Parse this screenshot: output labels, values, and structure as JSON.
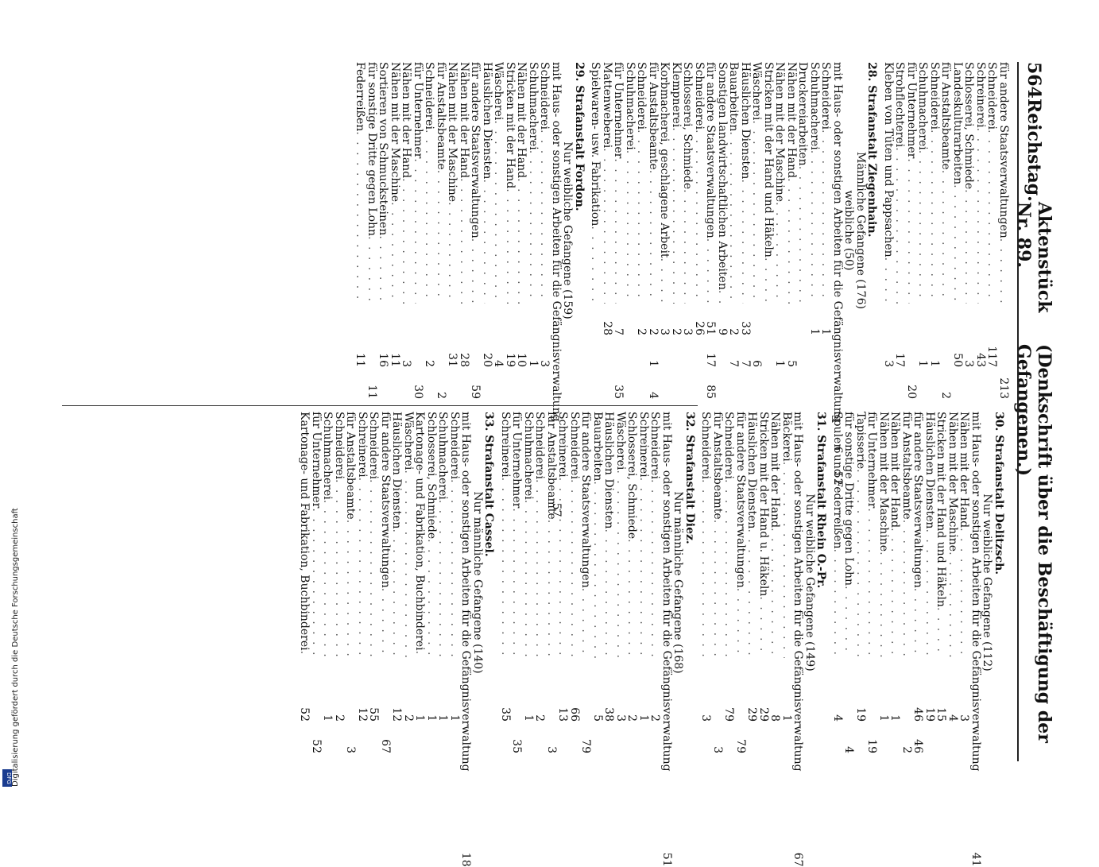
{
  "header": {
    "page_number": "564",
    "publisher": "Reichstag.",
    "file": "Aktenstück Nr. 89.",
    "title": "(Denkschrift über die Beschäftigung der Gefangenen.)"
  },
  "left_column": [
    {
      "kind": "row",
      "label": "für andere Staatsverwaltungen",
      "n1": "",
      "n2": "",
      "n3": "213"
    },
    {
      "kind": "row",
      "label": "Schneiderei",
      "n1": "",
      "n2": "117",
      "n3": ""
    },
    {
      "kind": "row",
      "label": "Schreinerei",
      "n1": "",
      "n2": "43",
      "n3": ""
    },
    {
      "kind": "row",
      "label": "Schlosserei, Schmiede",
      "n1": "",
      "n2": "3",
      "n3": ""
    },
    {
      "kind": "row",
      "label": "Landeskulturarbeiten",
      "n1": "",
      "n2": "50",
      "n3": ""
    },
    {
      "kind": "row",
      "label": "für Anstaltsbeamte",
      "n1": "",
      "n2": "",
      "n3": "2"
    },
    {
      "kind": "row",
      "label": "Schneiderei",
      "n1": "",
      "n2": "1",
      "n3": ""
    },
    {
      "kind": "row",
      "label": "Schuhmacherei",
      "n1": "",
      "n2": "1",
      "n3": ""
    },
    {
      "kind": "row",
      "label": "für Unternehmer",
      "n1": "",
      "n2": "",
      "n3": "20"
    },
    {
      "kind": "row",
      "label": "Strohflechterei",
      "n1": "",
      "n2": "17",
      "n3": ""
    },
    {
      "kind": "row",
      "label": "Kleben von Tüten und Pappsachen",
      "n1": "",
      "n2": "3",
      "n3": ""
    },
    {
      "kind": "section",
      "label": "28. Strafanstalt Ziegenhain."
    },
    {
      "kind": "sub",
      "label": "Männliche Gefangene (176)"
    },
    {
      "kind": "sub",
      "label": "weibliche (50)"
    },
    {
      "kind": "row",
      "label": "mit Haus- oder sonstigen Arbeiten für die Gefängnisverwaltung",
      "n1": "6",
      "n2": "52",
      "n3": ""
    },
    {
      "kind": "row",
      "label": "Schneiderei",
      "n1": "1",
      "n2": "",
      "n3": ""
    },
    {
      "kind": "row",
      "label": "Schuhmacherei",
      "n1": "1",
      "n2": "",
      "n3": ""
    },
    {
      "kind": "row",
      "label": "Druckereiarbeiten",
      "n1": "",
      "n2": "",
      "n3": ""
    },
    {
      "kind": "row",
      "label": "Nähen mit der Hand",
      "n1": "",
      "n2": "5",
      "n3": ""
    },
    {
      "kind": "row",
      "label": "Nähen mit der Maschine",
      "n1": "",
      "n2": "1",
      "n3": ""
    },
    {
      "kind": "row",
      "label": "Stricken mit der Hand und Häkeln",
      "n1": "",
      "n2": "",
      "n3": ""
    },
    {
      "kind": "row",
      "label": "Wäscherei",
      "n1": "",
      "n2": "6",
      "n3": ""
    },
    {
      "kind": "row",
      "label": "Häuslichen Diensten",
      "n1": "33",
      "n2": "7",
      "n3": ""
    },
    {
      "kind": "row",
      "label": "Bauarbeiten",
      "n1": "2",
      "n2": "7",
      "n3": ""
    },
    {
      "kind": "row",
      "label": "Sonstigen landwirtschaftlichen Arbeiten",
      "n1": "9",
      "n2": "",
      "n3": ""
    },
    {
      "kind": "row",
      "label": "für andere Staatsverwaltungen",
      "n1": "51",
      "n2": "17",
      "n3": "85"
    },
    {
      "kind": "row",
      "label": "Schneiderei",
      "n1": "26",
      "n2": "",
      "n3": ""
    },
    {
      "kind": "row",
      "label": "Schlosserei, Schmiede",
      "n1": "3",
      "n2": "",
      "n3": ""
    },
    {
      "kind": "row",
      "label": "Klempnerei",
      "n1": "2",
      "n2": "",
      "n3": ""
    },
    {
      "kind": "row",
      "label": "Korbmacherei, geschlagene Arbeit",
      "n1": "3",
      "n2": "",
      "n3": ""
    },
    {
      "kind": "row",
      "label": "für Anstaltsbeamte",
      "n1": "2",
      "n2": "1",
      "n3": "4"
    },
    {
      "kind": "row",
      "label": "Schneiderei",
      "n1": "2",
      "n2": "",
      "n3": ""
    },
    {
      "kind": "row",
      "label": "Schuhmacherei",
      "n1": "",
      "n2": "",
      "n3": ""
    },
    {
      "kind": "row",
      "label": "für Unternehmer",
      "n1": "7",
      "n2": "",
      "n3": "35"
    },
    {
      "kind": "row",
      "label": "Mattenweberei",
      "n1": "28",
      "n2": "",
      "n3": ""
    },
    {
      "kind": "row",
      "label": "Spielwaren- usw. Fabrikation",
      "n1": "",
      "n2": "",
      "n3": ""
    },
    {
      "kind": "section",
      "label": "29. Strafanstalt Fordon."
    },
    {
      "kind": "sub",
      "label": "Nur weibliche Gefangene (159)"
    },
    {
      "kind": "row",
      "label": "mit Haus- oder sonstigen Arbeiten für die Gefängnisverwaltung",
      "n1": "",
      "n2": "",
      "n3": "57"
    },
    {
      "kind": "row",
      "label": "Schneiderei",
      "n1": "",
      "n2": "3",
      "n3": ""
    },
    {
      "kind": "row",
      "label": "Schuhmacherei",
      "n1": "",
      "n2": "1",
      "n3": ""
    },
    {
      "kind": "row",
      "label": "Nähen mit der Hand",
      "n1": "",
      "n2": "10",
      "n3": ""
    },
    {
      "kind": "row",
      "label": "Stricken mit der Hand",
      "n1": "",
      "n2": "19",
      "n3": ""
    },
    {
      "kind": "row",
      "label": "Wäscherei",
      "n1": "",
      "n2": "4",
      "n3": ""
    },
    {
      "kind": "row",
      "label": "Häuslichen Diensten",
      "n1": "",
      "n2": "20",
      "n3": ""
    },
    {
      "kind": "row",
      "label": "für andere Staatsverwaltungen",
      "n1": "",
      "n2": "",
      "n3": "59"
    },
    {
      "kind": "row",
      "label": "Nähen mit der Hand",
      "n1": "",
      "n2": "28",
      "n3": ""
    },
    {
      "kind": "row",
      "label": "Nähen mit der Maschine",
      "n1": "",
      "n2": "31",
      "n3": ""
    },
    {
      "kind": "row",
      "label": "für Anstaltsbeamte",
      "n1": "",
      "n2": "",
      "n3": "2"
    },
    {
      "kind": "row",
      "label": "Schneiderei",
      "n1": "",
      "n2": "2",
      "n3": ""
    },
    {
      "kind": "row",
      "label": "für Unternehmer",
      "n1": "",
      "n2": "",
      "n3": "30"
    },
    {
      "kind": "row",
      "label": "Nähen mit der Hand",
      "n1": "",
      "n2": "3",
      "n3": ""
    },
    {
      "kind": "row",
      "label": "Nähen mit der Maschine",
      "n1": "",
      "n2": "11",
      "n3": ""
    },
    {
      "kind": "row",
      "label": "Sortieren von Schmucksteinen",
      "n1": "",
      "n2": "16",
      "n3": ""
    },
    {
      "kind": "row",
      "label": "für sonstige Dritte gegen Lohn",
      "n1": "",
      "n2": "",
      "n3": "11"
    },
    {
      "kind": "row",
      "label": "Federreißen",
      "n1": "",
      "n2": "11",
      "n3": ""
    }
  ],
  "right_column": [
    {
      "kind": "section",
      "label": "30. Strafanstalt Delitzsch."
    },
    {
      "kind": "sub",
      "label": "Nur weibliche Gefangene (112)"
    },
    {
      "kind": "row",
      "label": "mit Haus- oder sonstigen Arbeiten für die Gefängnisverwaltung",
      "n1": "",
      "n2": "",
      "n3": "41"
    },
    {
      "kind": "row",
      "label": "Nähen mit der Hand",
      "n1": "",
      "n2": "3",
      "n3": ""
    },
    {
      "kind": "row",
      "label": "Nähen mit der Maschine",
      "n1": "",
      "n2": "4",
      "n3": ""
    },
    {
      "kind": "row",
      "label": "Stricken mit der Hand und Häkeln",
      "n1": "",
      "n2": "15",
      "n3": ""
    },
    {
      "kind": "row",
      "label": "Häuslichen Diensten",
      "n1": "",
      "n2": "19",
      "n3": ""
    },
    {
      "kind": "row",
      "label": "für andere Staatsverwaltungen",
      "n1": "",
      "n2": "46",
      "n3": "46"
    },
    {
      "kind": "row",
      "label": "für Anstaltsbeamte",
      "n1": "",
      "n2": "",
      "n3": "2"
    },
    {
      "kind": "row",
      "label": "Nähen mit der Hand",
      "n1": "",
      "n2": "1",
      "n3": ""
    },
    {
      "kind": "row",
      "label": "Nähen mit der Maschine",
      "n1": "",
      "n2": "1",
      "n3": ""
    },
    {
      "kind": "row",
      "label": "für Unternehmer",
      "n1": "",
      "n2": "",
      "n3": "19"
    },
    {
      "kind": "row",
      "label": "Tapisserie",
      "n1": "",
      "n2": "19",
      "n3": ""
    },
    {
      "kind": "row",
      "label": "für sonstige Dritte gegen Lohn",
      "n1": "",
      "n2": "",
      "n3": "4"
    },
    {
      "kind": "row",
      "label": "Spulen und Federreißen",
      "n1": "",
      "n2": "4",
      "n3": ""
    },
    {
      "kind": "section",
      "label": "31. Strafanstalt Rhein O.-Pr."
    },
    {
      "kind": "sub",
      "label": "Nur weibliche Gefangene (149)"
    },
    {
      "kind": "row",
      "label": "mit Haus- oder sonstigen Arbeiten für die Gefängnisverwaltung",
      "n1": "",
      "n2": "",
      "n3": "67"
    },
    {
      "kind": "row",
      "label": "Bäckerei",
      "n1": "",
      "n2": "1",
      "n3": ""
    },
    {
      "kind": "row",
      "label": "Nähen mit der Hand",
      "n1": "",
      "n2": "8",
      "n3": ""
    },
    {
      "kind": "row",
      "label": "Stricken mit der Hand u. Häkeln",
      "n1": "",
      "n2": "29",
      "n3": ""
    },
    {
      "kind": "row",
      "label": "Häuslichen Diensten",
      "n1": "",
      "n2": "29",
      "n3": ""
    },
    {
      "kind": "row",
      "label": "für andere Staatsverwaltungen",
      "n1": "",
      "n2": "",
      "n3": "79"
    },
    {
      "kind": "row",
      "label": "Schneiderei",
      "n1": "",
      "n2": "79",
      "n3": ""
    },
    {
      "kind": "row",
      "label": "für Anstaltsbeamte",
      "n1": "",
      "n2": "",
      "n3": "3"
    },
    {
      "kind": "row",
      "label": "Schneiderei",
      "n1": "",
      "n2": "3",
      "n3": ""
    },
    {
      "kind": "section",
      "label": "32. Strafanstalt Diez."
    },
    {
      "kind": "sub",
      "label": "Nur männliche Gefangene (168)"
    },
    {
      "kind": "row",
      "label": "mit Haus- oder sonstigen Arbeiten für die Gefängnisverwaltung",
      "n1": "",
      "n2": "",
      "n3": "51"
    },
    {
      "kind": "row",
      "label": "Schneiderei",
      "n1": "",
      "n2": "2",
      "n3": ""
    },
    {
      "kind": "row",
      "label": "Schreinerei",
      "n1": "",
      "n2": "1",
      "n3": ""
    },
    {
      "kind": "row",
      "label": "Schlosserei, Schmiede",
      "n1": "",
      "n2": "2",
      "n3": ""
    },
    {
      "kind": "row",
      "label": "Wäscherei",
      "n1": "",
      "n2": "3",
      "n3": ""
    },
    {
      "kind": "row",
      "label": "Häuslichen Diensten",
      "n1": "",
      "n2": "38",
      "n3": ""
    },
    {
      "kind": "row",
      "label": "Bauarbeiten",
      "n1": "",
      "n2": "5",
      "n3": ""
    },
    {
      "kind": "row",
      "label": "für andere Staatsverwaltungen",
      "n1": "",
      "n2": "",
      "n3": "79"
    },
    {
      "kind": "row",
      "label": "Schneiderei",
      "n1": "",
      "n2": "66",
      "n3": ""
    },
    {
      "kind": "row",
      "label": "Schreinerei",
      "n1": "",
      "n2": "13",
      "n3": ""
    },
    {
      "kind": "row",
      "label": "für Anstaltsbeamte",
      "n1": "",
      "n2": "",
      "n3": "3"
    },
    {
      "kind": "row",
      "label": "Schneiderei",
      "n1": "",
      "n2": "2",
      "n3": ""
    },
    {
      "kind": "row",
      "label": "Schuhmacherei",
      "n1": "",
      "n2": "1",
      "n3": ""
    },
    {
      "kind": "row",
      "label": "für Unternehmer",
      "n1": "",
      "n2": "",
      "n3": "35"
    },
    {
      "kind": "row",
      "label": "Schreinerei",
      "n1": "",
      "n2": "35",
      "n3": ""
    },
    {
      "kind": "section",
      "label": "33. Strafanstalt Cassel."
    },
    {
      "kind": "sub",
      "label": "Nur männliche Gefangene (140)"
    },
    {
      "kind": "row",
      "label": "mit Haus- oder sonstigen Arbeiten für die Gefängnisverwaltung",
      "n1": "",
      "n2": "",
      "n3": "18"
    },
    {
      "kind": "row",
      "label": "Schneiderei",
      "n1": "",
      "n2": "1",
      "n3": ""
    },
    {
      "kind": "row",
      "label": "Schuhmacherei",
      "n1": "",
      "n2": "1",
      "n3": ""
    },
    {
      "kind": "row",
      "label": "Schlosserei, Schmiede",
      "n1": "",
      "n2": "1",
      "n3": ""
    },
    {
      "kind": "row",
      "label": "Kartonage- und Fabrikation, Buchbinderei",
      "n1": "",
      "n2": "1",
      "n3": ""
    },
    {
      "kind": "row",
      "label": "Wäscherei",
      "n1": "",
      "n2": "2",
      "n3": ""
    },
    {
      "kind": "row",
      "label": "Häuslichen Diensten",
      "n1": "",
      "n2": "12",
      "n3": ""
    },
    {
      "kind": "row",
      "label": "für andere Staatsverwaltungen",
      "n1": "",
      "n2": "",
      "n3": "67"
    },
    {
      "kind": "row",
      "label": "Schneiderei",
      "n1": "",
      "n2": "55",
      "n3": ""
    },
    {
      "kind": "row",
      "label": "Schreinerei",
      "n1": "",
      "n2": "12",
      "n3": ""
    },
    {
      "kind": "row",
      "label": "für Anstaltsbeamte",
      "n1": "",
      "n2": "",
      "n3": "3"
    },
    {
      "kind": "row",
      "label": "Schneiderei",
      "n1": "",
      "n2": "2",
      "n3": ""
    },
    {
      "kind": "row",
      "label": "Schuhmacherei",
      "n1": "",
      "n2": "1",
      "n3": ""
    },
    {
      "kind": "row",
      "label": "für Unternehmer",
      "n1": "",
      "n2": "",
      "n3": "52"
    },
    {
      "kind": "row",
      "label": "Kartonage- und Fabrikation, Buchbinderei",
      "n1": "",
      "n2": "52",
      "n3": ""
    }
  ],
  "sidebar": {
    "text": "Digitalisierung gefördert durch die Deutsche Forschungsgemeinschaft",
    "logo": "DFG"
  }
}
